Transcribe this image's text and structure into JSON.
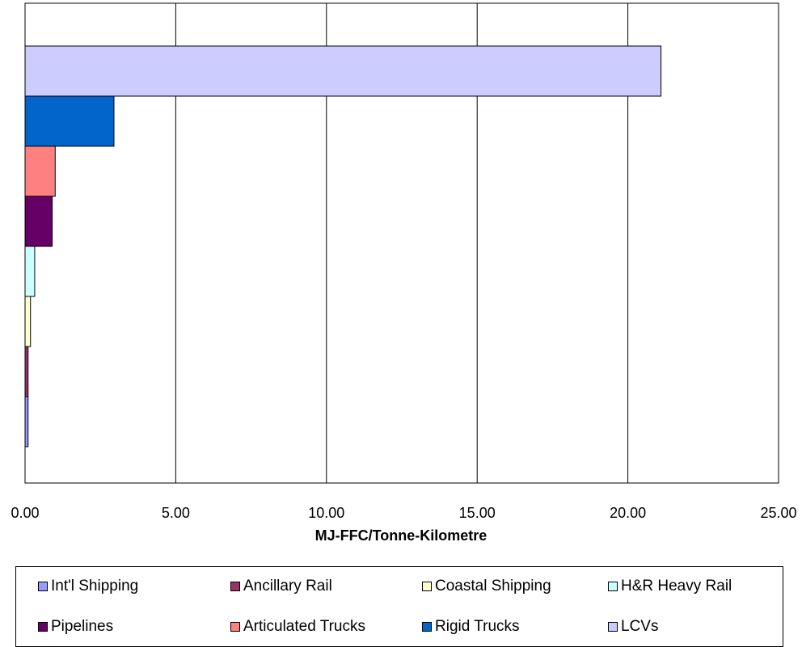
{
  "chart_data": {
    "type": "bar",
    "orientation": "horizontal",
    "xlabel": "MJ-FFC/Tonne-Kilometre",
    "xlim": [
      0,
      25
    ],
    "x_ticks": [
      "0.00",
      "5.00",
      "10.00",
      "15.00",
      "20.00",
      "25.00"
    ],
    "grid": "vertical",
    "legend_position": "bottom",
    "series": [
      {
        "name": "LCVs",
        "value": 21.1,
        "color": "#CCCCFF"
      },
      {
        "name": "Rigid Trucks",
        "value": 2.95,
        "color": "#0066CC"
      },
      {
        "name": "Articulated Trucks",
        "value": 1.0,
        "color": "#FF8080"
      },
      {
        "name": "Pipelines",
        "value": 0.9,
        "color": "#660066"
      },
      {
        "name": "H&R Heavy Rail",
        "value": 0.32,
        "color": "#CCFFFF"
      },
      {
        "name": "Coastal Shipping",
        "value": 0.18,
        "color": "#FFFFCC"
      },
      {
        "name": "Ancillary Rail",
        "value": 0.1,
        "color": "#993366"
      },
      {
        "name": "Int'l Shipping",
        "value": 0.1,
        "color": "#9999FF"
      }
    ],
    "legend_order": [
      "Int'l Shipping",
      "Ancillary Rail",
      "Coastal Shipping",
      "H&R Heavy Rail",
      "Pipelines",
      "Articulated Trucks",
      "Rigid Trucks",
      "LCVs"
    ]
  }
}
